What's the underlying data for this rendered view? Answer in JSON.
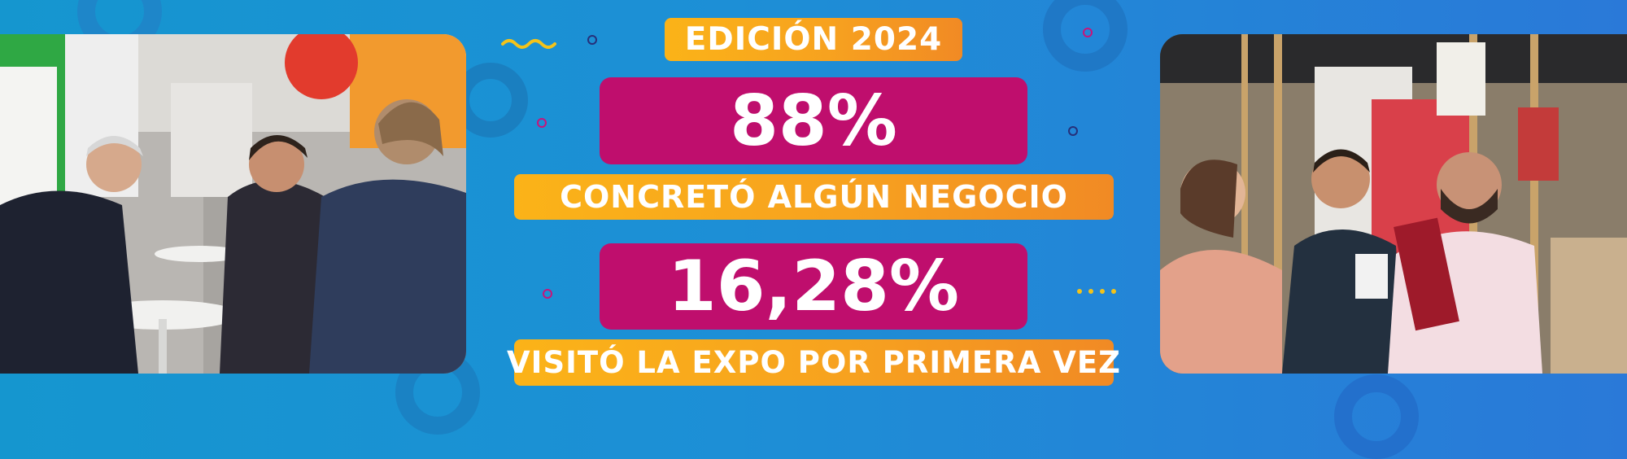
{
  "edition": "EDICIÓN 2024",
  "stats": [
    {
      "value": "88%",
      "label": "CONCRETÓ ALGÚN NEGOCIO"
    },
    {
      "value": "16,28%",
      "label": "VISITÓ LA EXPO POR PRIMERA VEZ"
    }
  ],
  "colors": {
    "background": "#1a8fd4",
    "magenta": "#bf0e6d",
    "orange": "#f7a21f",
    "yellow": "#fbb318"
  }
}
